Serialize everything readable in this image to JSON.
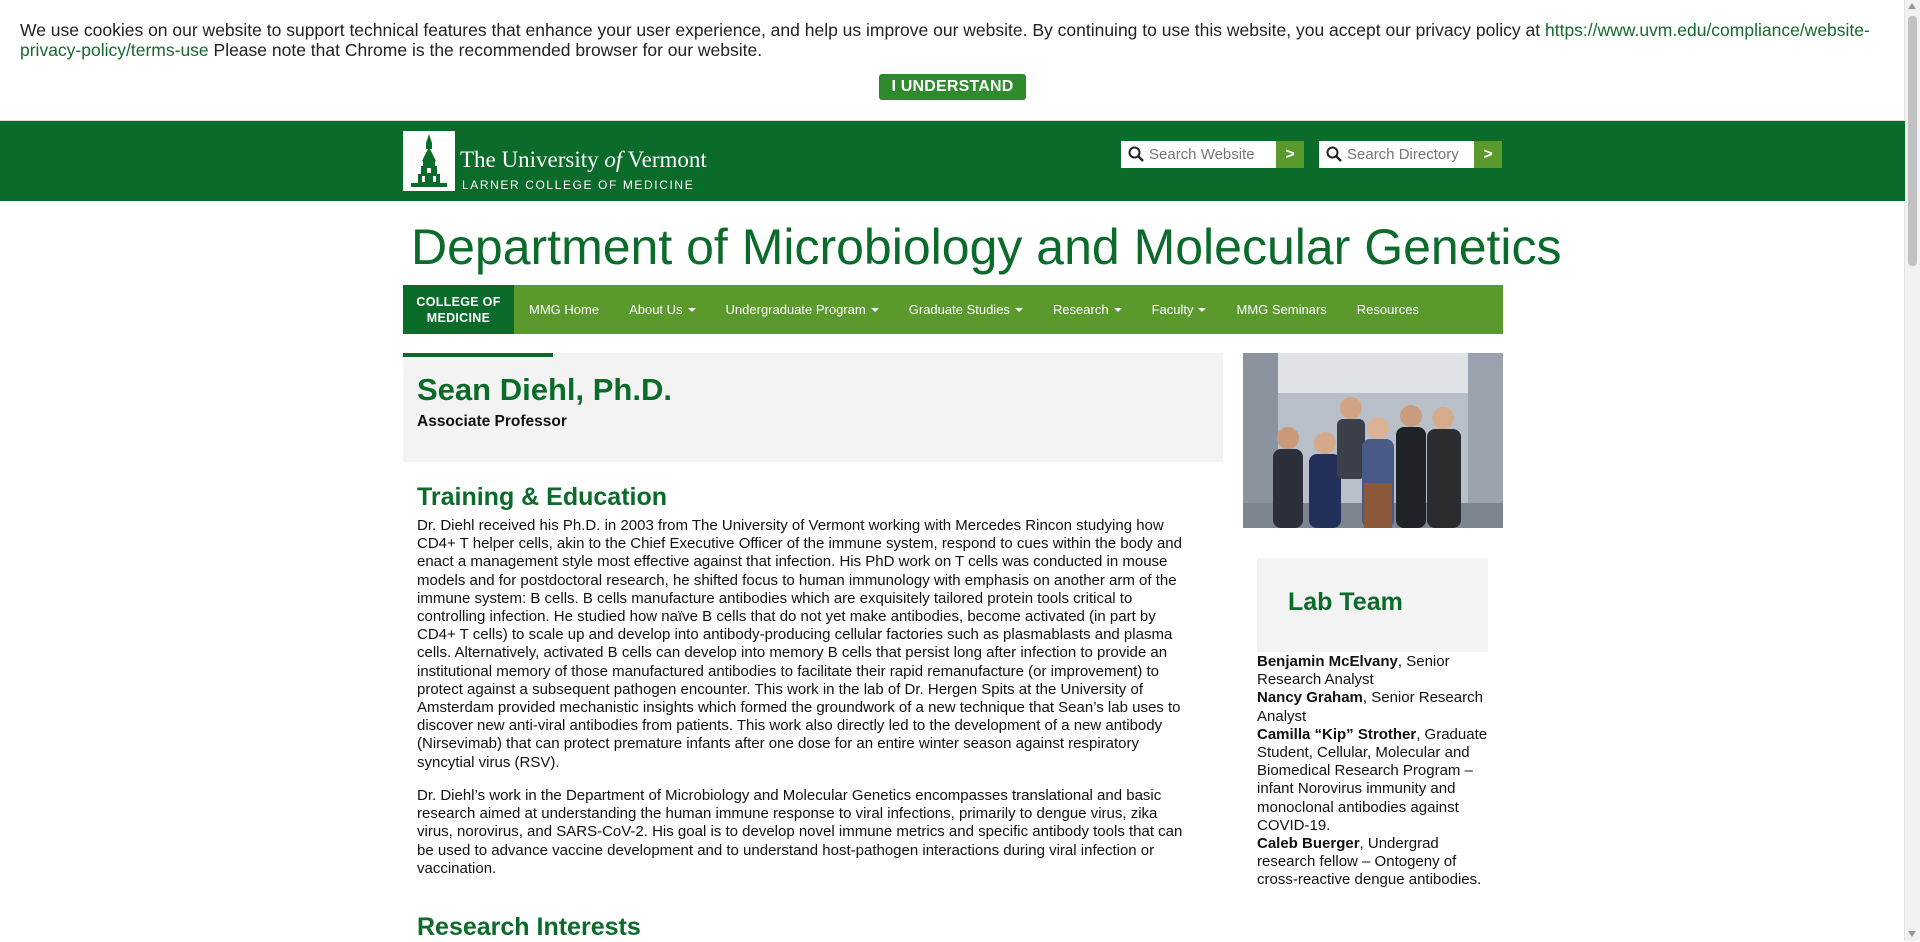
{
  "cookie": {
    "text_before": "We use cookies on our website to support technical features that enhance your user experience, and help us improve our website. By continuing to use this website, you accept our privacy policy at ",
    "link": "https://www.uvm.edu/compliance/website-privacy-policy/terms-use",
    "text_after": " Please note that Chrome is the recommended browser for our website.",
    "button": "I UNDERSTAND"
  },
  "header": {
    "logo_title_pre": "The University ",
    "logo_title_of": "of",
    "logo_title_post": " Vermont",
    "logo_sub": "LARNER COLLEGE OF MEDICINE",
    "search_website": {
      "placeholder": "Search Website",
      "go": ">"
    },
    "search_directory": {
      "placeholder": "Search Directory",
      "go": ">"
    }
  },
  "department": {
    "title": "Department of Microbiology and Molecular Genetics"
  },
  "nav": {
    "college": "COLLEGE OF MEDICINE",
    "items": [
      {
        "label": "MMG Home",
        "dropdown": false
      },
      {
        "label": "About Us",
        "dropdown": true
      },
      {
        "label": "Undergraduate Program",
        "dropdown": true
      },
      {
        "label": "Graduate Studies",
        "dropdown": true
      },
      {
        "label": "Research",
        "dropdown": true
      },
      {
        "label": "Faculty",
        "dropdown": true
      },
      {
        "label": "MMG Seminars",
        "dropdown": false
      },
      {
        "label": "Resources",
        "dropdown": false
      }
    ]
  },
  "profile": {
    "name": "Sean Diehl, Ph.D.",
    "role": "Associate Professor"
  },
  "main": {
    "training_heading": "Training & Education",
    "para1": "Dr. Diehl received his Ph.D. in 2003 from The University of Vermont working with Mercedes Rincon studying how CD4+ T helper cells, akin to the Chief Executive Officer of the immune system, respond to cues within the body and enact a management style most effective against that infection. His PhD work on T cells was conducted in mouse models and for postdoctoral research, he shifted focus to human immunology with emphasis on another arm of the immune system: B cells. B cells manufacture antibodies which are exquisitely tailored protein tools critical to controlling infection. He studied how naïve B cells that do not yet make antibodies, become activated (in part by CD4+ T cells) to scale up and develop into antibody-producing cellular factories such as plasmablasts and plasma cells. Alternatively, activated B cells can develop into memory B cells that persist long after infection to provide an institutional memory of those manufactured antibodies to facilitate their rapid remanufacture (or improvement) to protect against a subsequent pathogen encounter. This work in the lab of Dr. Hergen Spits at the University of Amsterdam provided mechanistic insights which formed the groundwork of a new technique that Sean’s lab uses to discover new anti-viral antibodies from patients. This work also directly led to the development of a new antibody (Nirsevimab) that can protect premature infants after one dose for an entire winter season against respiratory syncytial virus (RSV).",
    "para2": "Dr. Diehl’s work in the Department of Microbiology and Molecular Genetics encompasses translational and basic research aimed at understanding the human immune response to viral infections, primarily to dengue virus, zika virus, norovirus, and SARS-CoV-2. His goal is to develop novel immune metrics and specific antibody tools that can be used to advance vaccine development and to understand host-pathogen interactions during viral infection or vaccination.",
    "research_heading": "Research Interests"
  },
  "lab_team": {
    "title": "Lab Team",
    "members": [
      {
        "name": "Benjamin McElvany",
        "desc": ", Senior Research Analyst"
      },
      {
        "name": "Nancy Graham",
        "desc": ", Senior Research Analyst"
      },
      {
        "name": "Camilla “Kip” Strother",
        "desc": ", Graduate Student, Cellular, Molecular and Biomedical Research Program – infant Norovirus immunity and monoclonal antibodies against COVID-19."
      },
      {
        "name": "Caleb Buerger",
        "desc": ", Undergrad research fellow – Ontogeny of cross-reactive dengue antibodies."
      }
    ]
  },
  "colors": {
    "uvm_green": "#0b6b2a",
    "nav_green": "#5a9a2c",
    "button_green": "#2e8a2a"
  }
}
